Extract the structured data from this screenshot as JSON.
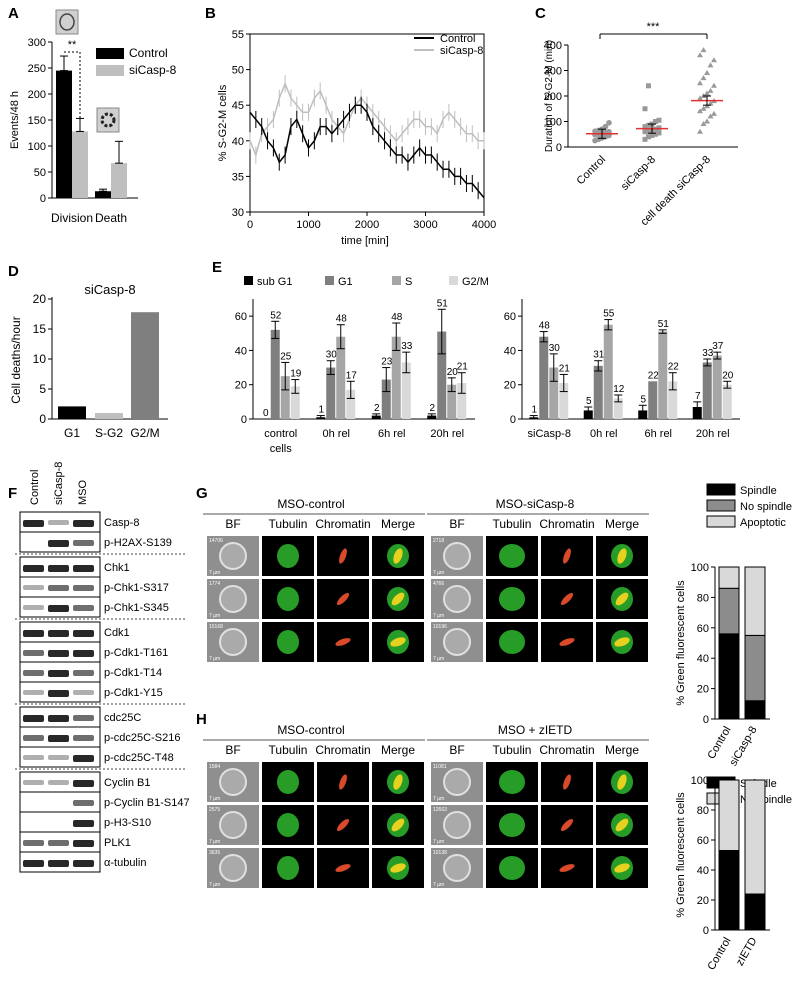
{
  "panel_letters": {
    "a": "A",
    "b": "B",
    "c": "C",
    "d": "D",
    "e": "E",
    "f": "F",
    "g": "G",
    "h": "H"
  },
  "colors": {
    "black": "#000000",
    "dark_gray": "#7f7f7f",
    "light_gray": "#bfbfbf",
    "pale_gray": "#d9d9d9",
    "red": "#e53030",
    "green": "#2eb82e",
    "chromatin_red": "#d84a2a"
  },
  "chart_data": [
    {
      "panel": "A",
      "type": "bar",
      "categories": [
        "Division",
        "Death"
      ],
      "series": [
        {
          "name": "Control",
          "values": [
            245,
            13
          ],
          "errors": [
            28,
            4
          ]
        },
        {
          "name": "siCasp-8",
          "values": [
            128,
            67
          ],
          "errors": [
            25,
            42
          ]
        }
      ],
      "ylabel": "Events/48 h",
      "ylim": [
        0,
        300
      ],
      "yticks": [
        "0",
        "50",
        "100",
        "150",
        "200",
        "250",
        "300"
      ],
      "annotation": "**",
      "legend": "top-right"
    },
    {
      "panel": "B",
      "type": "line",
      "xlabel": "time [min]",
      "ylabel": "% S-G2-M cells",
      "xlim": [
        0,
        4000
      ],
      "ylim": [
        30,
        55
      ],
      "xticks": [
        "0",
        "1000",
        "2000",
        "3000",
        "4000"
      ],
      "yticks": [
        "30",
        "35",
        "40",
        "45",
        "50",
        "55"
      ],
      "series": [
        {
          "name": "Control",
          "x": [
            0,
            100,
            200,
            300,
            400,
            500,
            600,
            700,
            800,
            900,
            1000,
            1100,
            1200,
            1300,
            1400,
            1500,
            1600,
            1700,
            1800,
            1900,
            2000,
            2100,
            2200,
            2300,
            2400,
            2500,
            2600,
            2700,
            2800,
            2900,
            3000,
            3100,
            3200,
            3300,
            3400,
            3500,
            3600,
            3700,
            3800,
            3900,
            4000
          ],
          "y": [
            44,
            43,
            42,
            40,
            39,
            37,
            38,
            42,
            43,
            41,
            39,
            40,
            42,
            42,
            41,
            42,
            43,
            44,
            45,
            45,
            44,
            42,
            41,
            40,
            39,
            38,
            38,
            37,
            38,
            39,
            38,
            38,
            37,
            36,
            36,
            35,
            35,
            34,
            34,
            33,
            32
          ]
        },
        {
          "name": "siCasp-8",
          "x": [
            0,
            100,
            200,
            300,
            400,
            500,
            600,
            700,
            800,
            900,
            1000,
            1100,
            1200,
            1300,
            1400,
            1500,
            1600,
            1700,
            1800,
            1900,
            2000,
            2100,
            2200,
            2300,
            2400,
            2500,
            2600,
            2700,
            2800,
            2900,
            3000,
            3100,
            3200,
            3300,
            3400,
            3500,
            3600,
            3700,
            3800,
            3900,
            4000
          ],
          "y": [
            40,
            38,
            41,
            42,
            43,
            46,
            48,
            46,
            45,
            44,
            44,
            46,
            47,
            45,
            43,
            42,
            41,
            43,
            45,
            46,
            45,
            44,
            43,
            42,
            41,
            40,
            41,
            42,
            43,
            43,
            42,
            42,
            41,
            43,
            44,
            43,
            42,
            41,
            41,
            40,
            40
          ]
        }
      ],
      "legend": "top-right"
    },
    {
      "panel": "C",
      "type": "scatter",
      "categories": [
        "Control",
        "siCasp-8",
        "cell death siCasp-8"
      ],
      "ylabel": "Duration of S-G2-M (min)",
      "ylim": [
        0,
        400
      ],
      "yticks": [
        "0",
        "100",
        "200",
        "300",
        "400"
      ],
      "means": [
        52,
        72,
        182
      ],
      "points": [
        [
          25,
          30,
          35,
          40,
          45,
          48,
          50,
          55,
          58,
          60,
          62,
          65,
          70,
          80,
          95
        ],
        [
          30,
          40,
          45,
          50,
          55,
          60,
          62,
          65,
          70,
          75,
          80,
          85,
          90,
          100,
          105,
          150,
          240
        ],
        [
          60,
          90,
          100,
          120,
          130,
          140,
          150,
          160,
          170,
          180,
          190,
          200,
          210,
          220,
          240,
          250,
          270,
          290,
          320,
          340,
          360,
          380
        ]
      ],
      "annotation": "***"
    },
    {
      "panel": "D",
      "type": "bar",
      "title": "siCasp-8",
      "categories": [
        "G1",
        "S-G2",
        "G2/M"
      ],
      "values": [
        2.1,
        1.0,
        17.8
      ],
      "ylabel": "Cell deaths/hour",
      "ylim": [
        0,
        20
      ],
      "yticks": [
        "0",
        "5",
        "10",
        "15",
        "20"
      ]
    },
    {
      "panel": "E",
      "type": "bar",
      "series_names": [
        "sub G1",
        "G1",
        "S",
        "G2/M"
      ],
      "ylim": [
        0,
        70
      ],
      "yticks": [
        "0",
        "20",
        "40",
        "60"
      ],
      "groups_left": [
        {
          "label": "control cells",
          "values": [
            0,
            52,
            25,
            19
          ],
          "labels": [
            "0",
            "52",
            "25",
            "19"
          ],
          "errors": [
            0,
            5,
            8,
            4
          ]
        },
        {
          "label": "0h rel",
          "values": [
            1,
            30,
            48,
            17
          ],
          "labels": [
            "1",
            "30",
            "48",
            "17"
          ],
          "errors": [
            1,
            4,
            7,
            5
          ]
        },
        {
          "label": "6h rel",
          "values": [
            2,
            23,
            48,
            33
          ],
          "labels": [
            "2",
            "23",
            "48",
            "33"
          ],
          "errors": [
            1,
            7,
            8,
            6
          ]
        },
        {
          "label": "20h rel",
          "values": [
            2,
            51,
            20,
            21
          ],
          "labels": [
            "2",
            "51",
            "20",
            "21"
          ],
          "errors": [
            1,
            13,
            4,
            6
          ]
        }
      ],
      "groups_right": [
        {
          "label": "siCasp-8",
          "values": [
            1,
            48,
            30,
            21
          ],
          "labels": [
            "1",
            "48",
            "30",
            "21"
          ],
          "errors": [
            1,
            3,
            8,
            5
          ]
        },
        {
          "label": "0h rel",
          "values": [
            5,
            31,
            55,
            12
          ],
          "labels": [
            "5",
            "31",
            "55",
            "12"
          ],
          "errors": [
            2,
            3,
            3,
            2
          ]
        },
        {
          "label": "6h rel",
          "values": [
            5,
            22,
            51,
            22
          ],
          "labels": [
            "5",
            "22",
            "51",
            "22"
          ],
          "errors": [
            3,
            0,
            1,
            5
          ]
        },
        {
          "label": "20h rel",
          "values": [
            7,
            33,
            37,
            20
          ],
          "labels": [
            "7",
            "33",
            "37",
            "20"
          ],
          "errors": [
            3,
            2,
            2,
            2
          ]
        }
      ]
    },
    {
      "panel": "G-chart",
      "type": "bar",
      "stacked": true,
      "categories": [
        "Control",
        "siCasp-8"
      ],
      "series": [
        {
          "name": "Spindle",
          "values": [
            56,
            12
          ]
        },
        {
          "name": "No spindle",
          "values": [
            30,
            43
          ]
        },
        {
          "name": "Apoptotic",
          "values": [
            14,
            45
          ]
        }
      ],
      "ylabel": "% Green fluorescent cells",
      "ylim": [
        0,
        100
      ],
      "yticks": [
        "0",
        "20",
        "40",
        "60",
        "80",
        "100"
      ]
    },
    {
      "panel": "H-chart",
      "type": "bar",
      "stacked": true,
      "categories": [
        "Control",
        "zIETD"
      ],
      "series": [
        {
          "name": "Spindle",
          "values": [
            53,
            24
          ]
        },
        {
          "name": "No spindle",
          "values": [
            47,
            76
          ]
        }
      ],
      "ylabel": "% Green fluorescent cells",
      "ylim": [
        0,
        100
      ],
      "yticks": [
        "0",
        "20",
        "40",
        "60",
        "80",
        "100"
      ]
    }
  ],
  "western_blot": {
    "columns": [
      "Control",
      "siCasp-8",
      "MSO"
    ],
    "groups": [
      [
        {
          "label": "Casp-8",
          "bands": [
            3,
            1,
            3
          ]
        },
        {
          "label": "p-H2AX-S139",
          "bands": [
            0,
            3,
            2
          ]
        }
      ],
      [
        {
          "label": "Chk1",
          "bands": [
            3,
            3,
            3
          ]
        },
        {
          "label": "p-Chk1-S317",
          "bands": [
            1,
            2,
            2
          ]
        },
        {
          "label": "p-Chk1-S345",
          "bands": [
            1,
            3,
            2
          ]
        }
      ],
      [
        {
          "label": "Cdk1",
          "bands": [
            3,
            3,
            3
          ]
        },
        {
          "label": "p-Cdk1-T161",
          "bands": [
            2,
            3,
            3
          ]
        },
        {
          "label": "p-Cdk1-T14",
          "bands": [
            2,
            3,
            2
          ]
        },
        {
          "label": "p-Cdk1-Y15",
          "bands": [
            1,
            3,
            1
          ]
        }
      ],
      [
        {
          "label": "cdc25C",
          "bands": [
            3,
            3,
            2
          ]
        },
        {
          "label": "p-cdc25C-S216",
          "bands": [
            2,
            3,
            2
          ]
        },
        {
          "label": "p-cdc25C-T48",
          "bands": [
            1,
            1,
            3
          ]
        }
      ],
      [
        {
          "label": "Cyclin B1",
          "bands": [
            1,
            1,
            3
          ]
        },
        {
          "label": "p-Cyclin B1-S147",
          "bands": [
            0,
            0,
            2
          ]
        },
        {
          "label": "p-H3-S10",
          "bands": [
            0,
            0,
            3
          ]
        },
        {
          "label": "PLK1",
          "bands": [
            2,
            2,
            3
          ]
        },
        {
          "label": "α-tubulin",
          "bands": [
            3,
            3,
            3
          ]
        }
      ]
    ]
  },
  "microscopy": {
    "G": {
      "left_title": "MSO-control",
      "right_title": "MSO-siCasp-8",
      "columns": [
        "BF",
        "Tubulin",
        "Chromatin",
        "Merge"
      ],
      "left_ids": [
        "14706",
        "1774",
        "15168"
      ],
      "right_ids": [
        "2718",
        "4766",
        "10196"
      ],
      "scale": "7 µm"
    },
    "H": {
      "left_title": "MSO-control",
      "right_title": "MSO + zIETD",
      "columns": [
        "BF",
        "Tubulin",
        "Chromatin",
        "Merge"
      ],
      "left_ids": [
        "1584",
        "2575",
        "3635"
      ],
      "right_ids": [
        "11081",
        "12663",
        "10138"
      ],
      "scale": "7 µm"
    }
  }
}
